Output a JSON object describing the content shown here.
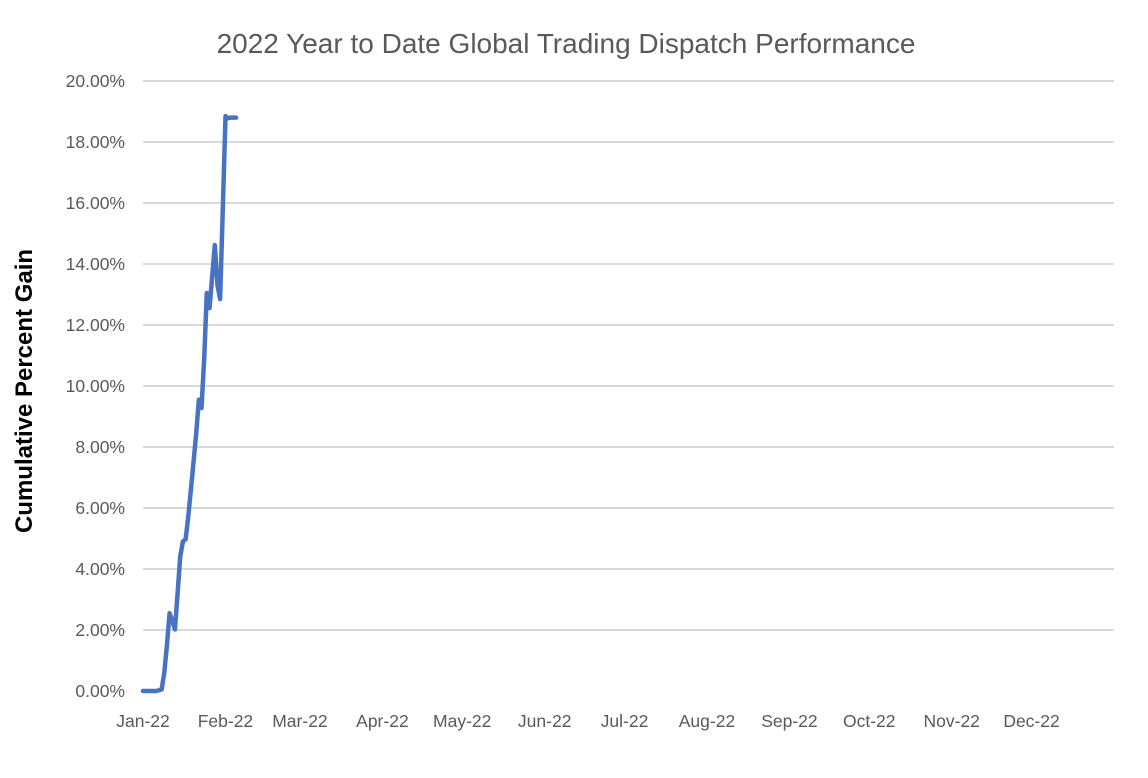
{
  "chart_data": {
    "type": "line",
    "title": "2022 Year to Date Global Trading Dispatch Performance",
    "xlabel": "",
    "ylabel": "Cumulative Percent Gain",
    "ylim": [
      0,
      20
    ],
    "xlim_days": [
      1,
      366
    ],
    "grid": "horizontal gridlines at 2% steps, none drawn at 0%",
    "legend": "none",
    "y_ticks": [
      {
        "value": 0,
        "label": "0.00%"
      },
      {
        "value": 2,
        "label": "2.00%"
      },
      {
        "value": 4,
        "label": "4.00%"
      },
      {
        "value": 6,
        "label": "6.00%"
      },
      {
        "value": 8,
        "label": "8.00%"
      },
      {
        "value": 10,
        "label": "10.00%"
      },
      {
        "value": 12,
        "label": "12.00%"
      },
      {
        "value": 14,
        "label": "14.00%"
      },
      {
        "value": 16,
        "label": "16.00%"
      },
      {
        "value": 18,
        "label": "18.00%"
      },
      {
        "value": 20,
        "label": "20.00%"
      }
    ],
    "x_ticks": [
      {
        "day": 1,
        "label": "Jan-22"
      },
      {
        "day": 32,
        "label": "Feb-22"
      },
      {
        "day": 60,
        "label": "Mar-22"
      },
      {
        "day": 91,
        "label": "Apr-22"
      },
      {
        "day": 121,
        "label": "May-22"
      },
      {
        "day": 152,
        "label": "Jun-22"
      },
      {
        "day": 182,
        "label": "Jul-22"
      },
      {
        "day": 213,
        "label": "Aug-22"
      },
      {
        "day": 244,
        "label": "Sep-22"
      },
      {
        "day": 274,
        "label": "Oct-22"
      },
      {
        "day": 305,
        "label": "Nov-22"
      },
      {
        "day": 335,
        "label": "Dec-22"
      }
    ],
    "series": [
      {
        "name": "Cumulative Percent Gain (YTD, ends early Feb at ~18.8%)",
        "x_days": [
          1,
          3,
          6,
          8,
          9,
          10,
          11,
          12,
          13,
          14,
          15,
          16,
          17,
          18,
          19,
          20,
          21,
          22,
          23,
          24,
          25,
          26,
          27,
          28,
          29,
          30,
          31,
          32,
          33,
          34,
          36
        ],
        "values": [
          0.0,
          0.0,
          0.0,
          0.05,
          0.6,
          1.5,
          2.55,
          2.3,
          2.02,
          3.2,
          4.4,
          4.9,
          4.97,
          5.7,
          6.6,
          7.5,
          8.45,
          9.55,
          9.28,
          10.9,
          13.05,
          12.55,
          13.6,
          14.62,
          13.3,
          12.85,
          15.8,
          18.85,
          18.78,
          18.8,
          18.8
        ]
      }
    ],
    "colors": {
      "line": "#4873C2",
      "gridline": "#D9D9D9",
      "tick_text": "#595959",
      "title_text": "#595959",
      "y_axis_title_text": "#000000",
      "background": "#FFFFFF"
    }
  }
}
